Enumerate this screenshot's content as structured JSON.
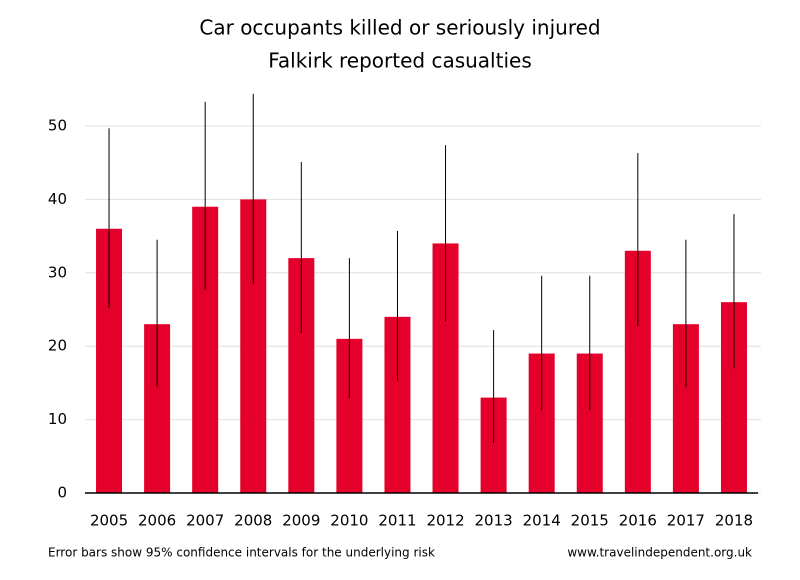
{
  "chart_data": {
    "type": "bar",
    "title": "Car occupants killed or seriously injured",
    "subtitle": "Falkirk reported casualties",
    "categories": [
      "2005",
      "2006",
      "2007",
      "2008",
      "2009",
      "2010",
      "2011",
      "2012",
      "2013",
      "2014",
      "2015",
      "2016",
      "2017",
      "2018"
    ],
    "values": [
      36,
      23,
      39,
      40,
      32,
      21,
      24,
      34,
      13,
      19,
      19,
      33,
      23,
      26
    ],
    "ci_low": [
      25.2,
      14.4,
      27.7,
      28.5,
      21.8,
      12.9,
      15.3,
      23.4,
      6.8,
      11.3,
      11.3,
      22.7,
      14.4,
      17.0
    ],
    "ci_high": [
      49.7,
      34.5,
      53.3,
      54.4,
      45.1,
      32.0,
      35.7,
      47.4,
      22.2,
      29.6,
      29.6,
      46.3,
      34.5,
      38.0
    ],
    "color": "#e4002b",
    "ylim": [
      0,
      55
    ],
    "yticks": [
      0,
      10,
      20,
      30,
      40,
      50
    ],
    "grid": true,
    "footnote": "Error bars show 95% confidence intervals for the underlying risk",
    "source": "www.travelindependent.org.uk"
  }
}
